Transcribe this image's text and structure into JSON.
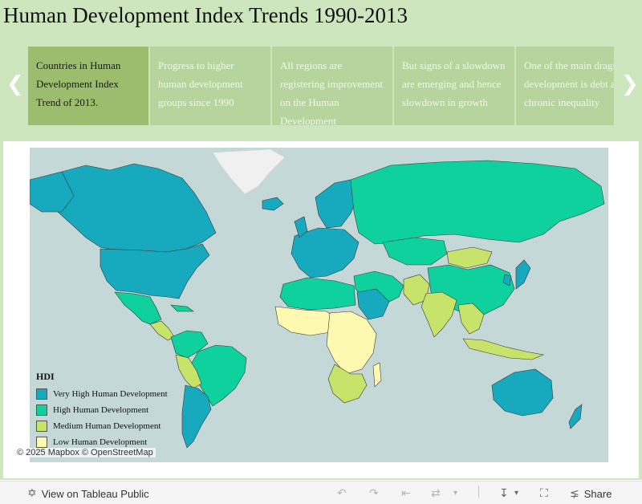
{
  "page": {
    "title": "Human Development Index Trends 1990-2013"
  },
  "story_points": [
    {
      "text": "Countries in Human Development Index Trend of 2013.",
      "active": true
    },
    {
      "text": "Progress to higher human development groups since 1990",
      "active": false
    },
    {
      "text": "All regions are registering improvement on the Human Development",
      "active": false
    },
    {
      "text": "But signs of a slowdown are emerging and hence  slowdown in growth",
      "active": false
    },
    {
      "text": "One of the main drags on development is debt and chronic inequality",
      "active": false
    }
  ],
  "map": {
    "legend_title": "HDI",
    "legend": [
      {
        "label": "Very High Human Development",
        "color": "#17a9bd"
      },
      {
        "label": "High Human Development",
        "color": "#0fd19e"
      },
      {
        "label": "Medium Human Development",
        "color": "#c7e36a"
      },
      {
        "label": "Low Human Development",
        "color": "#fdf9b0"
      }
    ],
    "no_data_color": "#e2e2e2",
    "attribution": {
      "mapbox": "© 2025 Mapbox",
      "osm": "© OpenStreetMap"
    }
  },
  "toolbar": {
    "view_label": "View on Tableau Public",
    "share_label": "Share"
  }
}
